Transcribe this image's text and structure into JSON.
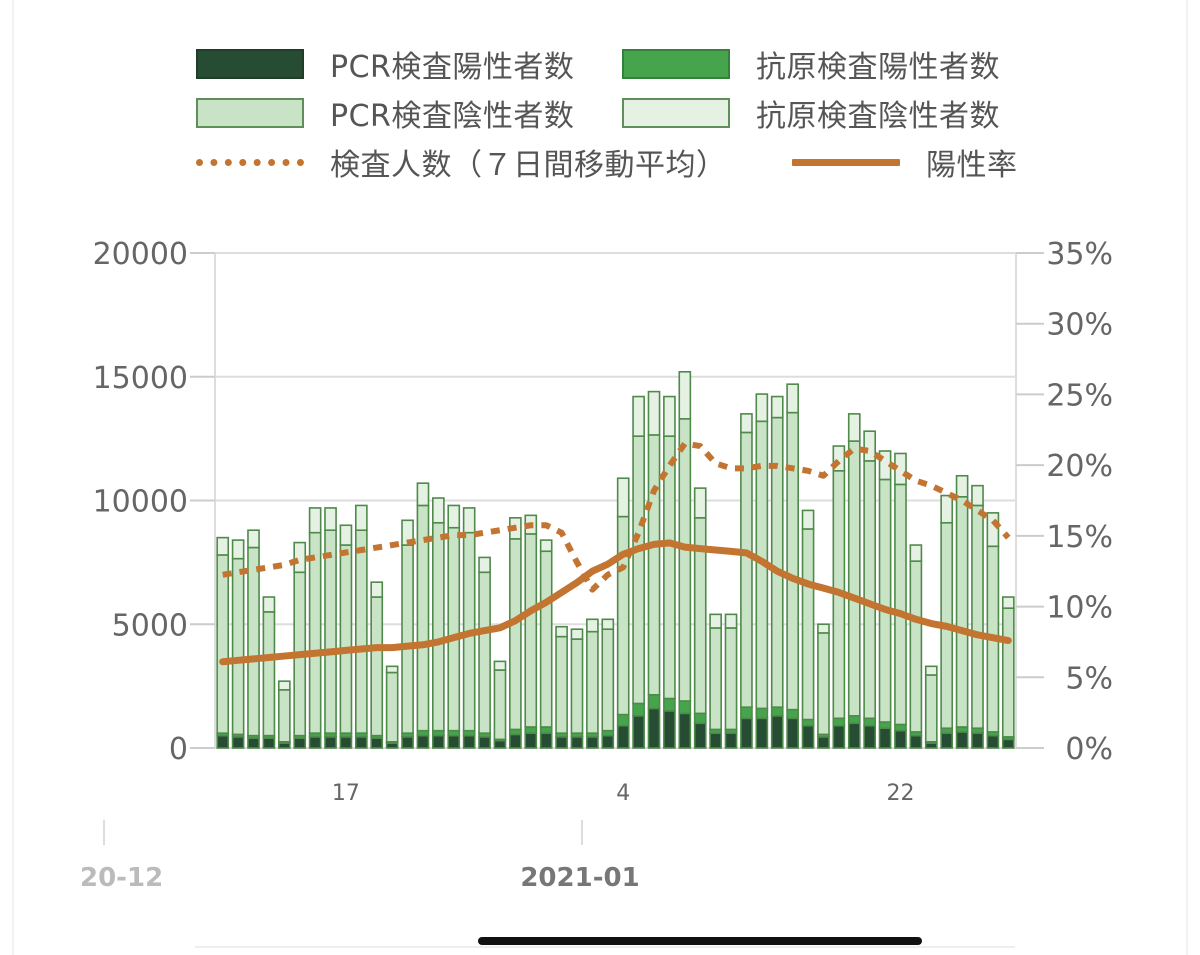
{
  "chart_data": {
    "type": "bar",
    "legend": {
      "placement": "top",
      "items": [
        {
          "key": "pcr_pos",
          "label": "PCR検査陽性者数",
          "kind": "bar",
          "color": "#264d33"
        },
        {
          "key": "ag_pos",
          "label": "抗原検査陽性者数",
          "kind": "bar",
          "color": "#45a44c"
        },
        {
          "key": "pcr_neg",
          "label": "PCR検査陰性者数",
          "kind": "bar",
          "color": "#c8e3c5"
        },
        {
          "key": "ag_neg",
          "label": "抗原検査陰性者数",
          "kind": "bar",
          "color": "#e5f1e3"
        },
        {
          "key": "tests7",
          "label": "検査人数（７日間移動平均）",
          "kind": "dotted-line",
          "color": "#c27430"
        },
        {
          "key": "rate",
          "label": "陽性率",
          "kind": "line",
          "color": "#c27430"
        }
      ]
    },
    "y_left": {
      "min": 0,
      "max": 20000,
      "ticks": [
        "0",
        "5000",
        "10000",
        "15000",
        "20000"
      ]
    },
    "y_right": {
      "min": 0,
      "max": 35,
      "ticks": [
        "0%",
        "5%",
        "10%",
        "15%",
        "20%",
        "25%",
        "30%",
        "35%"
      ]
    },
    "x_ticks": [
      {
        "label": "17",
        "index": 8
      },
      {
        "label": "4",
        "index": 26
      },
      {
        "label": "22",
        "index": 44
      }
    ],
    "x_months": [
      {
        "label": "20-12",
        "weight": "normal"
      },
      {
        "label": "2021-01",
        "weight": "bold"
      }
    ],
    "grid": true,
    "colors": {
      "pcr_pos": "#264d33",
      "ag_pos": "#45a44c",
      "pcr_neg": "#c8e3c5",
      "ag_neg": "#e5f1e3",
      "bar_edge": "#4f8a4b",
      "line": "#c27430",
      "grid": "#dddddd",
      "axis_text": "#666666"
    },
    "totals": [
      8500,
      8400,
      8800,
      6100,
      2700,
      8300,
      9700,
      9700,
      9000,
      9800,
      6700,
      3300,
      9200,
      10700,
      10100,
      9800,
      9700,
      7700,
      3500,
      9300,
      9400,
      8400,
      4900,
      4800,
      5200,
      5200,
      10900,
      14200,
      14400,
      14200,
      15200,
      10500,
      5400,
      5400,
      13500,
      14300,
      14200,
      14700,
      9600,
      5000,
      12200,
      13500,
      12800,
      12000,
      11900,
      8200,
      3300,
      10200,
      11000,
      10600,
      9500,
      6100
    ],
    "pcr_pos": [
      500,
      450,
      400,
      400,
      200,
      400,
      450,
      450,
      450,
      450,
      400,
      200,
      450,
      500,
      500,
      500,
      500,
      450,
      300,
      550,
      600,
      600,
      450,
      450,
      450,
      500,
      900,
      1300,
      1600,
      1500,
      1400,
      1000,
      600,
      600,
      1200,
      1200,
      1300,
      1200,
      900,
      450,
      900,
      1000,
      900,
      800,
      700,
      500,
      200,
      600,
      650,
      600,
      500,
      350
    ],
    "ag_pos": [
      100,
      100,
      100,
      100,
      50,
      100,
      150,
      150,
      150,
      150,
      100,
      50,
      150,
      200,
      200,
      200,
      200,
      150,
      50,
      200,
      250,
      250,
      150,
      150,
      150,
      200,
      450,
      500,
      550,
      500,
      500,
      400,
      150,
      150,
      450,
      400,
      350,
      350,
      250,
      100,
      300,
      300,
      300,
      250,
      250,
      150,
      50,
      200,
      200,
      200,
      150,
      100
    ],
    "pcr_neg": [
      7200,
      7100,
      7600,
      5000,
      2100,
      6600,
      8100,
      8200,
      7600,
      8200,
      5600,
      2800,
      7600,
      9100,
      8400,
      8200,
      8000,
      6500,
      2800,
      7700,
      7800,
      7100,
      3900,
      3800,
      4100,
      4100,
      8000,
      10800,
      10500,
      10600,
      11400,
      7900,
      4100,
      4100,
      11100,
      11600,
      11700,
      12000,
      7700,
      4100,
      10000,
      11100,
      10400,
      9800,
      9700,
      6900,
      2700,
      8300,
      9300,
      9000,
      7500,
      5200
    ],
    "tests7": [
      7000,
      7100,
      7200,
      7300,
      7400,
      7600,
      7700,
      7800,
      7900,
      8000,
      8100,
      8200,
      8300,
      8400,
      8500,
      8600,
      8600,
      8700,
      8800,
      8900,
      9000,
      9000,
      8700,
      7500,
      6400,
      7000,
      7300,
      8700,
      10400,
      11400,
      12300,
      12200,
      11500,
      11300,
      11300,
      11400,
      11400,
      11300,
      11200,
      11000,
      11600,
      12100,
      12000,
      11600,
      11200,
      10800,
      10600,
      10300,
      10000,
      9600,
      9200,
      8500
    ],
    "rate": [
      6.1,
      6.2,
      6.3,
      6.4,
      6.5,
      6.6,
      6.7,
      6.8,
      6.9,
      7.0,
      7.1,
      7.1,
      7.2,
      7.3,
      7.5,
      7.8,
      8.1,
      8.3,
      8.5,
      9.0,
      9.7,
      10.3,
      11.0,
      11.7,
      12.5,
      13.0,
      13.7,
      14.1,
      14.4,
      14.5,
      14.2,
      14.1,
      14.0,
      13.9,
      13.8,
      13.2,
      12.5,
      12.0,
      11.6,
      11.3,
      11.0,
      10.6,
      10.2,
      9.8,
      9.5,
      9.1,
      8.8,
      8.6,
      8.3,
      8.0,
      7.8,
      7.6
    ]
  }
}
